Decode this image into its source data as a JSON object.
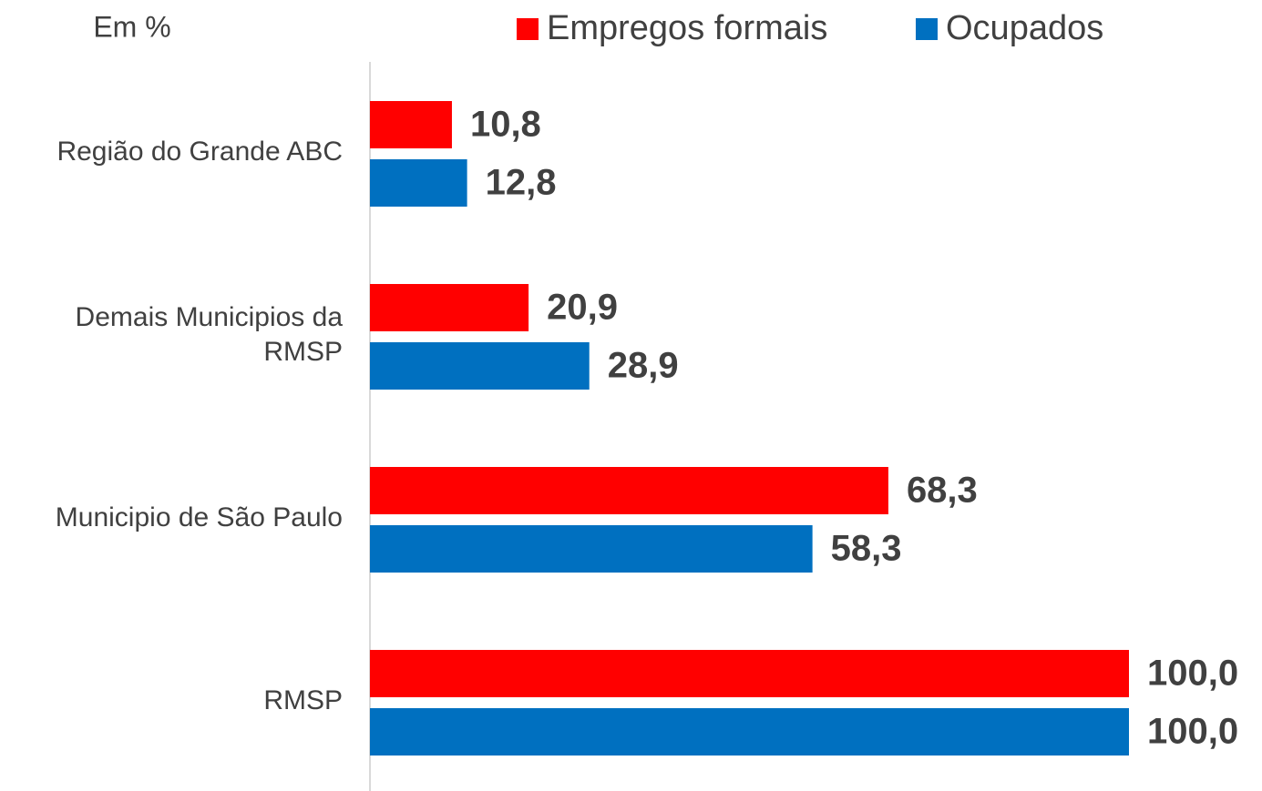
{
  "chart_data": {
    "type": "bar",
    "orientation": "horizontal",
    "title": "Em %",
    "categories": [
      "Região do Grande ABC",
      "Demais Municipios da RMSP",
      "Municipio de São Paulo",
      "RMSP"
    ],
    "series": [
      {
        "name": "Empregos formais",
        "color": "#ff0000",
        "values": [
          10.8,
          20.9,
          68.3,
          100.0
        ],
        "value_labels": [
          "10,8",
          "20,9",
          "68,3",
          "100,0"
        ]
      },
      {
        "name": "Ocupados",
        "color": "#0070c0",
        "values": [
          12.8,
          28.9,
          58.3,
          100.0
        ],
        "value_labels": [
          "12,8",
          "28,9",
          "58,3",
          "100,0"
        ]
      }
    ],
    "xlim": [
      0,
      100
    ],
    "legend": "top",
    "grid": false
  }
}
